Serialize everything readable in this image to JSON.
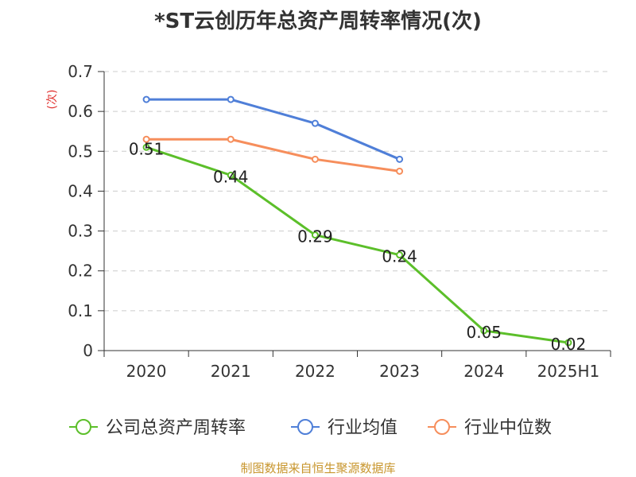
{
  "chart_data": {
    "type": "line",
    "title": "*ST云创历年总资产周转率情况(次)",
    "ylabel": "(次)",
    "xlabel": "",
    "categories": [
      "2020",
      "2021",
      "2022",
      "2023",
      "2024",
      "2025H1"
    ],
    "ylim": [
      0,
      0.7
    ],
    "yticks": [
      "0",
      "0.1",
      "0.2",
      "0.3",
      "0.4",
      "0.5",
      "0.6",
      "0.7"
    ],
    "grid": true,
    "legend_position": "bottom",
    "series": [
      {
        "name": "公司总资产周转率",
        "color": "#5cbf2a",
        "values": [
          0.51,
          0.44,
          0.29,
          0.24,
          0.05,
          0.02
        ],
        "labels": [
          "0.51",
          "0.44",
          "0.29",
          "0.24",
          "0.05",
          "0.02"
        ]
      },
      {
        "name": "行业均值",
        "color": "#4f7fd8",
        "values": [
          0.63,
          0.63,
          0.57,
          0.48,
          null,
          null
        ]
      },
      {
        "name": "行业中位数",
        "color": "#f68e5c",
        "values": [
          0.53,
          0.53,
          0.48,
          0.45,
          null,
          null
        ]
      }
    ]
  },
  "footer": {
    "source": "制图数据来自恒生聚源数据库"
  }
}
